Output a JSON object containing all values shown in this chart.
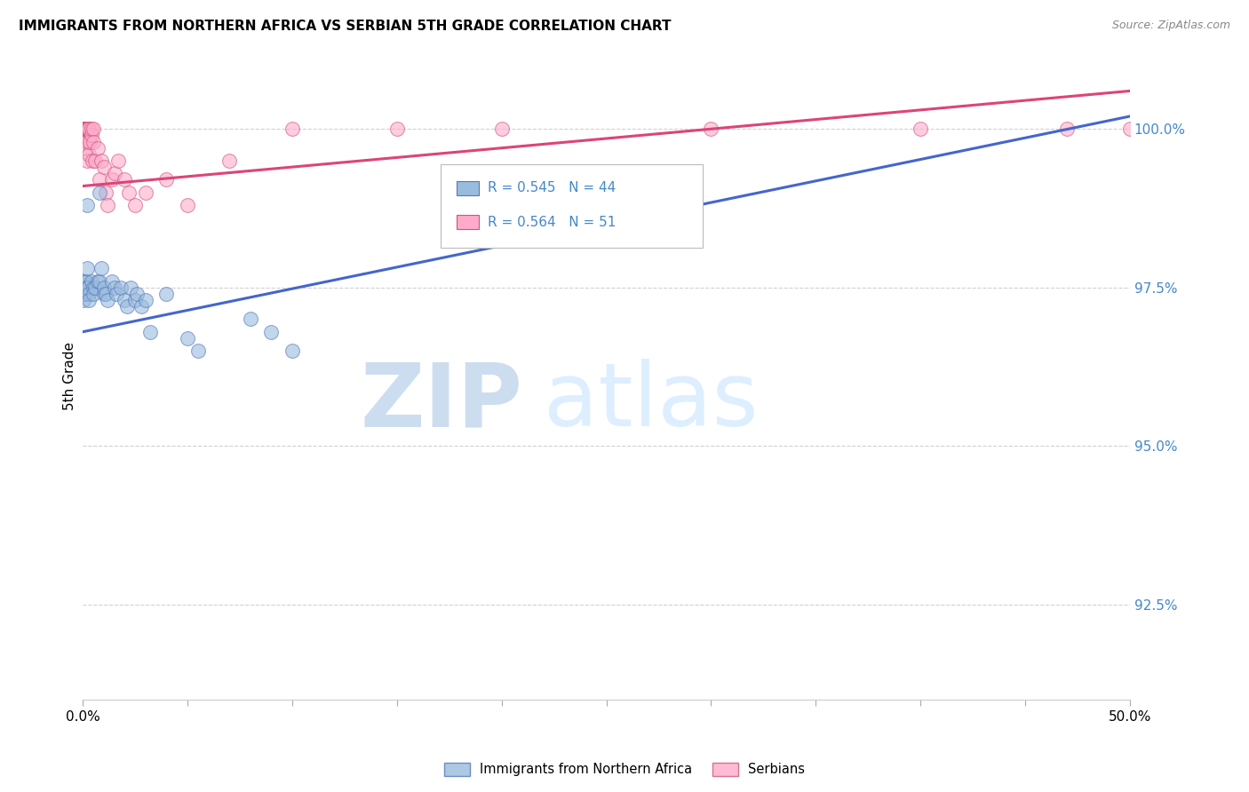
{
  "title": "IMMIGRANTS FROM NORTHERN AFRICA VS SERBIAN 5TH GRADE CORRELATION CHART",
  "source": "Source: ZipAtlas.com",
  "ylabel": "5th Grade",
  "y_ticks": [
    92.5,
    95.0,
    97.5,
    100.0
  ],
  "y_tick_labels": [
    "92.5%",
    "95.0%",
    "97.5%",
    "100.0%"
  ],
  "xlim": [
    0.0,
    50.0
  ],
  "ylim": [
    91.0,
    101.2
  ],
  "blue_legend": "Immigrants from Northern Africa",
  "pink_legend": "Serbians",
  "blue_R": 0.545,
  "blue_N": 44,
  "pink_R": 0.564,
  "pink_N": 51,
  "blue_color": "#99BBDD",
  "pink_color": "#FFAACC",
  "blue_edge_color": "#5577BB",
  "pink_edge_color": "#CC5577",
  "blue_line_color": "#4466CC",
  "pink_line_color": "#DD4477",
  "blue_scatter_x": [
    0.05,
    0.05,
    0.05,
    0.08,
    0.1,
    0.1,
    0.1,
    0.15,
    0.15,
    0.2,
    0.2,
    0.25,
    0.3,
    0.3,
    0.4,
    0.5,
    0.5,
    0.6,
    0.7,
    0.8,
    0.8,
    0.9,
    1.0,
    1.0,
    1.1,
    1.2,
    1.4,
    1.5,
    1.6,
    1.8,
    2.0,
    2.1,
    2.3,
    2.5,
    2.6,
    2.8,
    3.0,
    3.2,
    4.0,
    5.0,
    5.5,
    8.0,
    9.0,
    10.0
  ],
  "blue_scatter_y": [
    97.5,
    97.4,
    97.3,
    97.6,
    97.5,
    97.4,
    97.6,
    97.6,
    97.5,
    97.8,
    98.8,
    97.5,
    97.4,
    97.3,
    97.6,
    97.5,
    97.4,
    97.5,
    97.6,
    99.0,
    97.6,
    97.8,
    97.4,
    97.5,
    97.4,
    97.3,
    97.6,
    97.5,
    97.4,
    97.5,
    97.3,
    97.2,
    97.5,
    97.3,
    97.4,
    97.2,
    97.3,
    96.8,
    97.4,
    96.7,
    96.5,
    97.0,
    96.8,
    96.5
  ],
  "pink_scatter_x": [
    0.02,
    0.03,
    0.05,
    0.05,
    0.05,
    0.08,
    0.08,
    0.1,
    0.1,
    0.1,
    0.12,
    0.15,
    0.15,
    0.15,
    0.2,
    0.2,
    0.2,
    0.25,
    0.25,
    0.3,
    0.3,
    0.35,
    0.4,
    0.4,
    0.45,
    0.5,
    0.5,
    0.6,
    0.7,
    0.8,
    0.9,
    1.0,
    1.1,
    1.2,
    1.4,
    1.5,
    1.7,
    2.0,
    2.2,
    2.5,
    3.0,
    4.0,
    5.0,
    7.0,
    10.0,
    15.0,
    20.0,
    30.0,
    40.0,
    47.0,
    50.0
  ],
  "pink_scatter_y": [
    100.0,
    100.0,
    100.0,
    100.0,
    99.8,
    100.0,
    100.0,
    100.0,
    100.0,
    100.0,
    100.0,
    100.0,
    100.0,
    99.7,
    100.0,
    100.0,
    99.5,
    99.8,
    100.0,
    99.6,
    100.0,
    99.8,
    99.9,
    100.0,
    99.5,
    100.0,
    99.8,
    99.5,
    99.7,
    99.2,
    99.5,
    99.4,
    99.0,
    98.8,
    99.2,
    99.3,
    99.5,
    99.2,
    99.0,
    98.8,
    99.0,
    99.2,
    98.8,
    99.5,
    100.0,
    100.0,
    100.0,
    100.0,
    100.0,
    100.0,
    100.0
  ],
  "blue_line_x0": 0.0,
  "blue_line_y0": 96.8,
  "blue_line_x1": 50.0,
  "blue_line_y1": 100.2,
  "pink_line_x0": 0.0,
  "pink_line_y0": 99.1,
  "pink_line_x1": 50.0,
  "pink_line_y1": 100.6
}
